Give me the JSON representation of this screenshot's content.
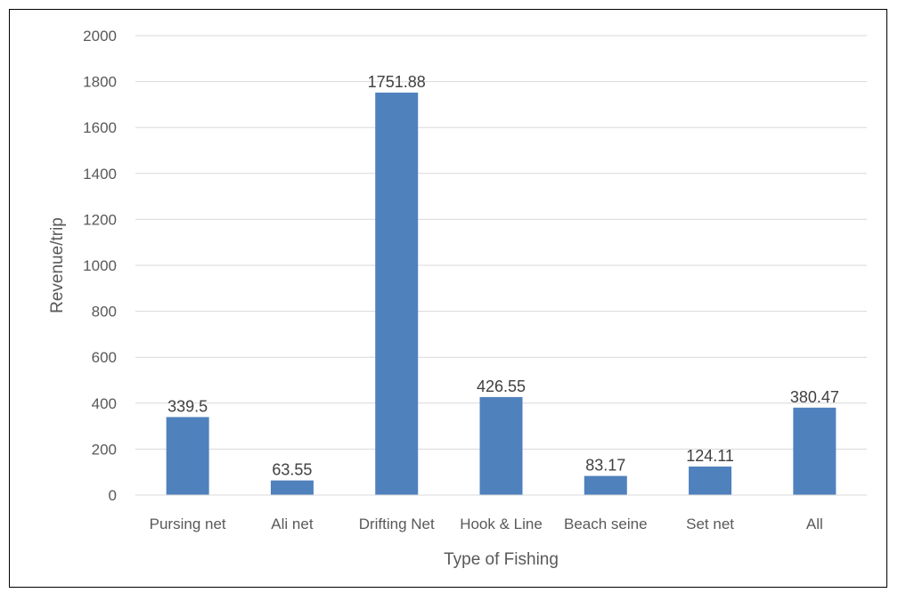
{
  "chart_data": {
    "type": "bar",
    "title": "",
    "xlabel": "Type of Fishing",
    "ylabel": "Revenue/trip",
    "categories": [
      "Pursing net",
      "Ali net",
      "Drifting Net",
      "Hook & Line",
      "Beach seine",
      "Set net",
      "All"
    ],
    "values": [
      339.5,
      63.55,
      1751.88,
      426.55,
      83.17,
      124.11,
      380.47
    ],
    "data_labels": [
      "339.5",
      "63.55",
      "1751.88",
      "426.55",
      "83.17",
      "124.11",
      "380.47"
    ],
    "ylim": [
      0,
      2000
    ],
    "yticks": [
      0,
      200,
      400,
      600,
      800,
      1000,
      1200,
      1400,
      1600,
      1800,
      2000
    ],
    "grid": true,
    "legend": "none",
    "bar_color": "#4f81bd",
    "grid_color": "#d9d9d9"
  }
}
